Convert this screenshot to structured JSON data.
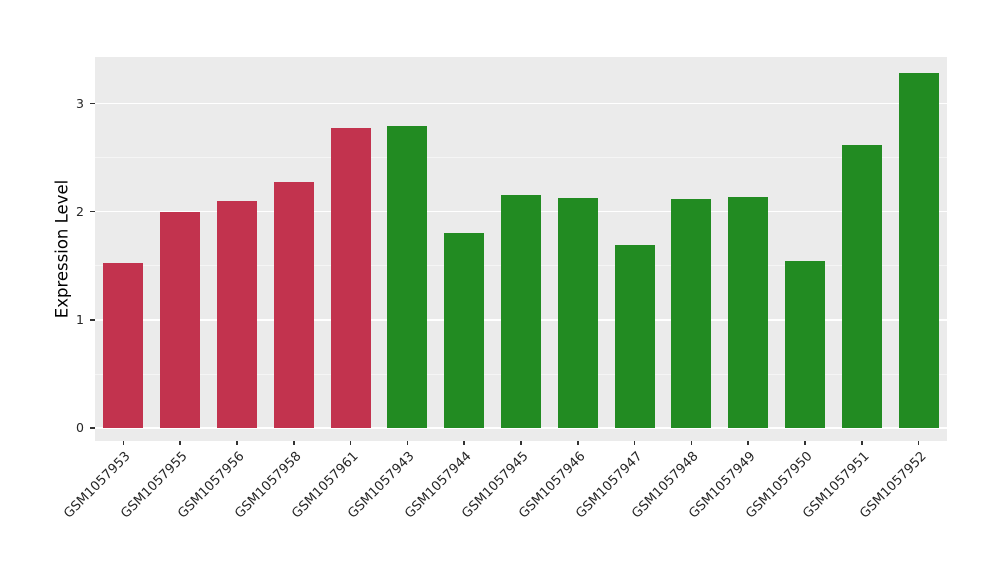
{
  "colors": {
    "figure_bg": "#FFFFFF",
    "panel_bg": "#EBEBEB",
    "grid_major": "#FFFFFF",
    "grid_minor": "#F5F5F5",
    "tick_color": "#333333",
    "text_color": "#262626",
    "red_bar": "#C2334E",
    "green_bar": "#228B22"
  },
  "chart_data": {
    "type": "bar",
    "title": "",
    "xlabel": "",
    "ylabel": "Expression Level",
    "ylim": [
      0,
      3.43
    ],
    "yticks": [
      0,
      1,
      2,
      3
    ],
    "minor_ticks": [
      0.5,
      1.5,
      2.5
    ],
    "grid": true,
    "legend": "none",
    "categories": [
      "GSM1057953",
      "GSM1057955",
      "GSM1057956",
      "GSM1057958",
      "GSM1057961",
      "GSM1057943",
      "GSM1057944",
      "GSM1057945",
      "GSM1057946",
      "GSM1057947",
      "GSM1057948",
      "GSM1057949",
      "GSM1057950",
      "GSM1057951",
      "GSM1057952"
    ],
    "values": [
      1.53,
      2.0,
      2.1,
      2.27,
      2.77,
      2.79,
      1.8,
      2.15,
      2.13,
      1.69,
      2.12,
      2.14,
      1.54,
      2.62,
      3.28
    ],
    "bar_colors": [
      "#C2334E",
      "#C2334E",
      "#C2334E",
      "#C2334E",
      "#C2334E",
      "#228B22",
      "#228B22",
      "#228B22",
      "#228B22",
      "#228B22",
      "#228B22",
      "#228B22",
      "#228B22",
      "#228B22",
      "#228B22"
    ],
    "groups": [
      {
        "name": "red-group",
        "color": "#C2334E",
        "categories": [
          "GSM1057953",
          "GSM1057955",
          "GSM1057956",
          "GSM1057958",
          "GSM1057961"
        ]
      },
      {
        "name": "green-group",
        "color": "#228B22",
        "categories": [
          "GSM1057943",
          "GSM1057944",
          "GSM1057945",
          "GSM1057946",
          "GSM1057947",
          "GSM1057948",
          "GSM1057949",
          "GSM1057950",
          "GSM1057951",
          "GSM1057952"
        ]
      }
    ]
  }
}
